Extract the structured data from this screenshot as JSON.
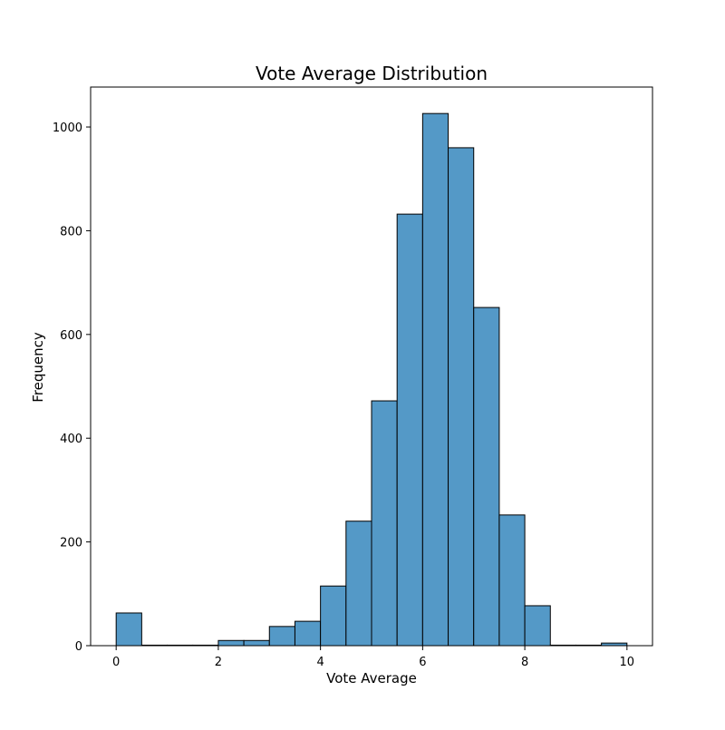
{
  "chart_data": {
    "type": "bar",
    "title": "Vote Average Distribution",
    "xlabel": "Vote Average",
    "ylabel": "Frequency",
    "xlim": [
      -0.5,
      10.5
    ],
    "ylim": [
      0,
      1077
    ],
    "x_ticks": [
      0,
      2,
      4,
      6,
      8,
      10
    ],
    "y_ticks": [
      0,
      200,
      400,
      600,
      800,
      1000
    ],
    "grid": false,
    "bin_width": 0.5,
    "bins": [
      {
        "start": 0.0,
        "end": 0.5,
        "count": 63
      },
      {
        "start": 0.5,
        "end": 1.0,
        "count": 1
      },
      {
        "start": 1.0,
        "end": 1.5,
        "count": 1
      },
      {
        "start": 1.5,
        "end": 2.0,
        "count": 1
      },
      {
        "start": 2.0,
        "end": 2.5,
        "count": 10
      },
      {
        "start": 2.5,
        "end": 3.0,
        "count": 10
      },
      {
        "start": 3.0,
        "end": 3.5,
        "count": 37
      },
      {
        "start": 3.5,
        "end": 4.0,
        "count": 47
      },
      {
        "start": 4.0,
        "end": 4.5,
        "count": 115
      },
      {
        "start": 4.5,
        "end": 5.0,
        "count": 240
      },
      {
        "start": 5.0,
        "end": 5.5,
        "count": 472
      },
      {
        "start": 5.5,
        "end": 6.0,
        "count": 832
      },
      {
        "start": 6.0,
        "end": 6.5,
        "count": 1026
      },
      {
        "start": 6.5,
        "end": 7.0,
        "count": 960
      },
      {
        "start": 7.0,
        "end": 7.5,
        "count": 652
      },
      {
        "start": 7.5,
        "end": 8.0,
        "count": 252
      },
      {
        "start": 8.0,
        "end": 8.5,
        "count": 77
      },
      {
        "start": 8.5,
        "end": 9.0,
        "count": 1
      },
      {
        "start": 9.0,
        "end": 9.5,
        "count": 1
      },
      {
        "start": 9.5,
        "end": 10.0,
        "count": 5
      }
    ],
    "colors": {
      "bar_fill": "#5499c7",
      "bar_edge": "#000000",
      "axis": "#000000"
    }
  }
}
